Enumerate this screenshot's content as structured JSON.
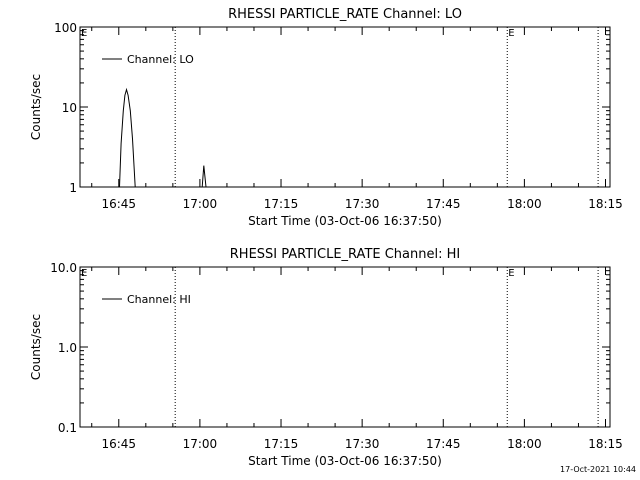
{
  "chart_data": [
    {
      "type": "line",
      "title": "RHESSI PARTICLE_RATE Channel: LO",
      "xlabel": "Start Time (03-Oct-06 16:37:50)",
      "ylabel": "Counts/sec",
      "y_scale": "log",
      "ylim": [
        1,
        100
      ],
      "yticks": [
        1,
        10,
        100
      ],
      "ytick_labels": [
        "1",
        "10",
        "100"
      ],
      "x_unit": "minutes since 16:37:50",
      "xlim": [
        0,
        98
      ],
      "xticks": [
        7.17,
        22.17,
        37.17,
        52.17,
        67.17,
        82.17,
        97.17
      ],
      "xtick_labels": [
        "16:45",
        "17:00",
        "17:15",
        "17:30",
        "17:45",
        "18:00",
        "18:15"
      ],
      "legend": {
        "label": "Channel: LO",
        "placement": "top-left"
      },
      "markers": [
        {
          "x": 17.6,
          "label": ""
        },
        {
          "x": 79.0,
          "label": "E"
        },
        {
          "x": 95.8,
          "label": ""
        }
      ],
      "corner_label": "E",
      "series": [
        {
          "name": "Channel: LO",
          "points": [
            [
              7.3,
              1
            ],
            [
              7.6,
              3.5
            ],
            [
              8.0,
              9
            ],
            [
              8.3,
              14
            ],
            [
              8.6,
              16.5
            ],
            [
              8.9,
              14
            ],
            [
              9.3,
              9
            ],
            [
              9.7,
              4
            ],
            [
              10.2,
              1
            ],
            [
              22.6,
              1
            ],
            [
              22.9,
              1.85
            ],
            [
              23.3,
              1
            ]
          ]
        }
      ]
    },
    {
      "type": "line",
      "title": "RHESSI PARTICLE_RATE Channel: HI",
      "xlabel": "Start Time (03-Oct-06 16:37:50)",
      "ylabel": "Counts/sec",
      "y_scale": "log",
      "ylim": [
        0.1,
        10
      ],
      "yticks": [
        0.1,
        1,
        10
      ],
      "ytick_labels": [
        "0.1",
        "1.0",
        "10.0"
      ],
      "x_unit": "minutes since 16:37:50",
      "xlim": [
        0,
        98
      ],
      "xticks": [
        7.17,
        22.17,
        37.17,
        52.17,
        67.17,
        82.17,
        97.17
      ],
      "xtick_labels": [
        "16:45",
        "17:00",
        "17:15",
        "17:30",
        "17:45",
        "18:00",
        "18:15"
      ],
      "legend": {
        "label": "Channel: HI",
        "placement": "top-left"
      },
      "markers": [
        {
          "x": 17.6,
          "label": ""
        },
        {
          "x": 79.0,
          "label": "E"
        },
        {
          "x": 95.8,
          "label": ""
        }
      ],
      "corner_label": "E",
      "series": [
        {
          "name": "Channel: HI",
          "points": []
        }
      ]
    }
  ],
  "footer": {
    "timestamp": "17-Oct-2021 10:44"
  }
}
